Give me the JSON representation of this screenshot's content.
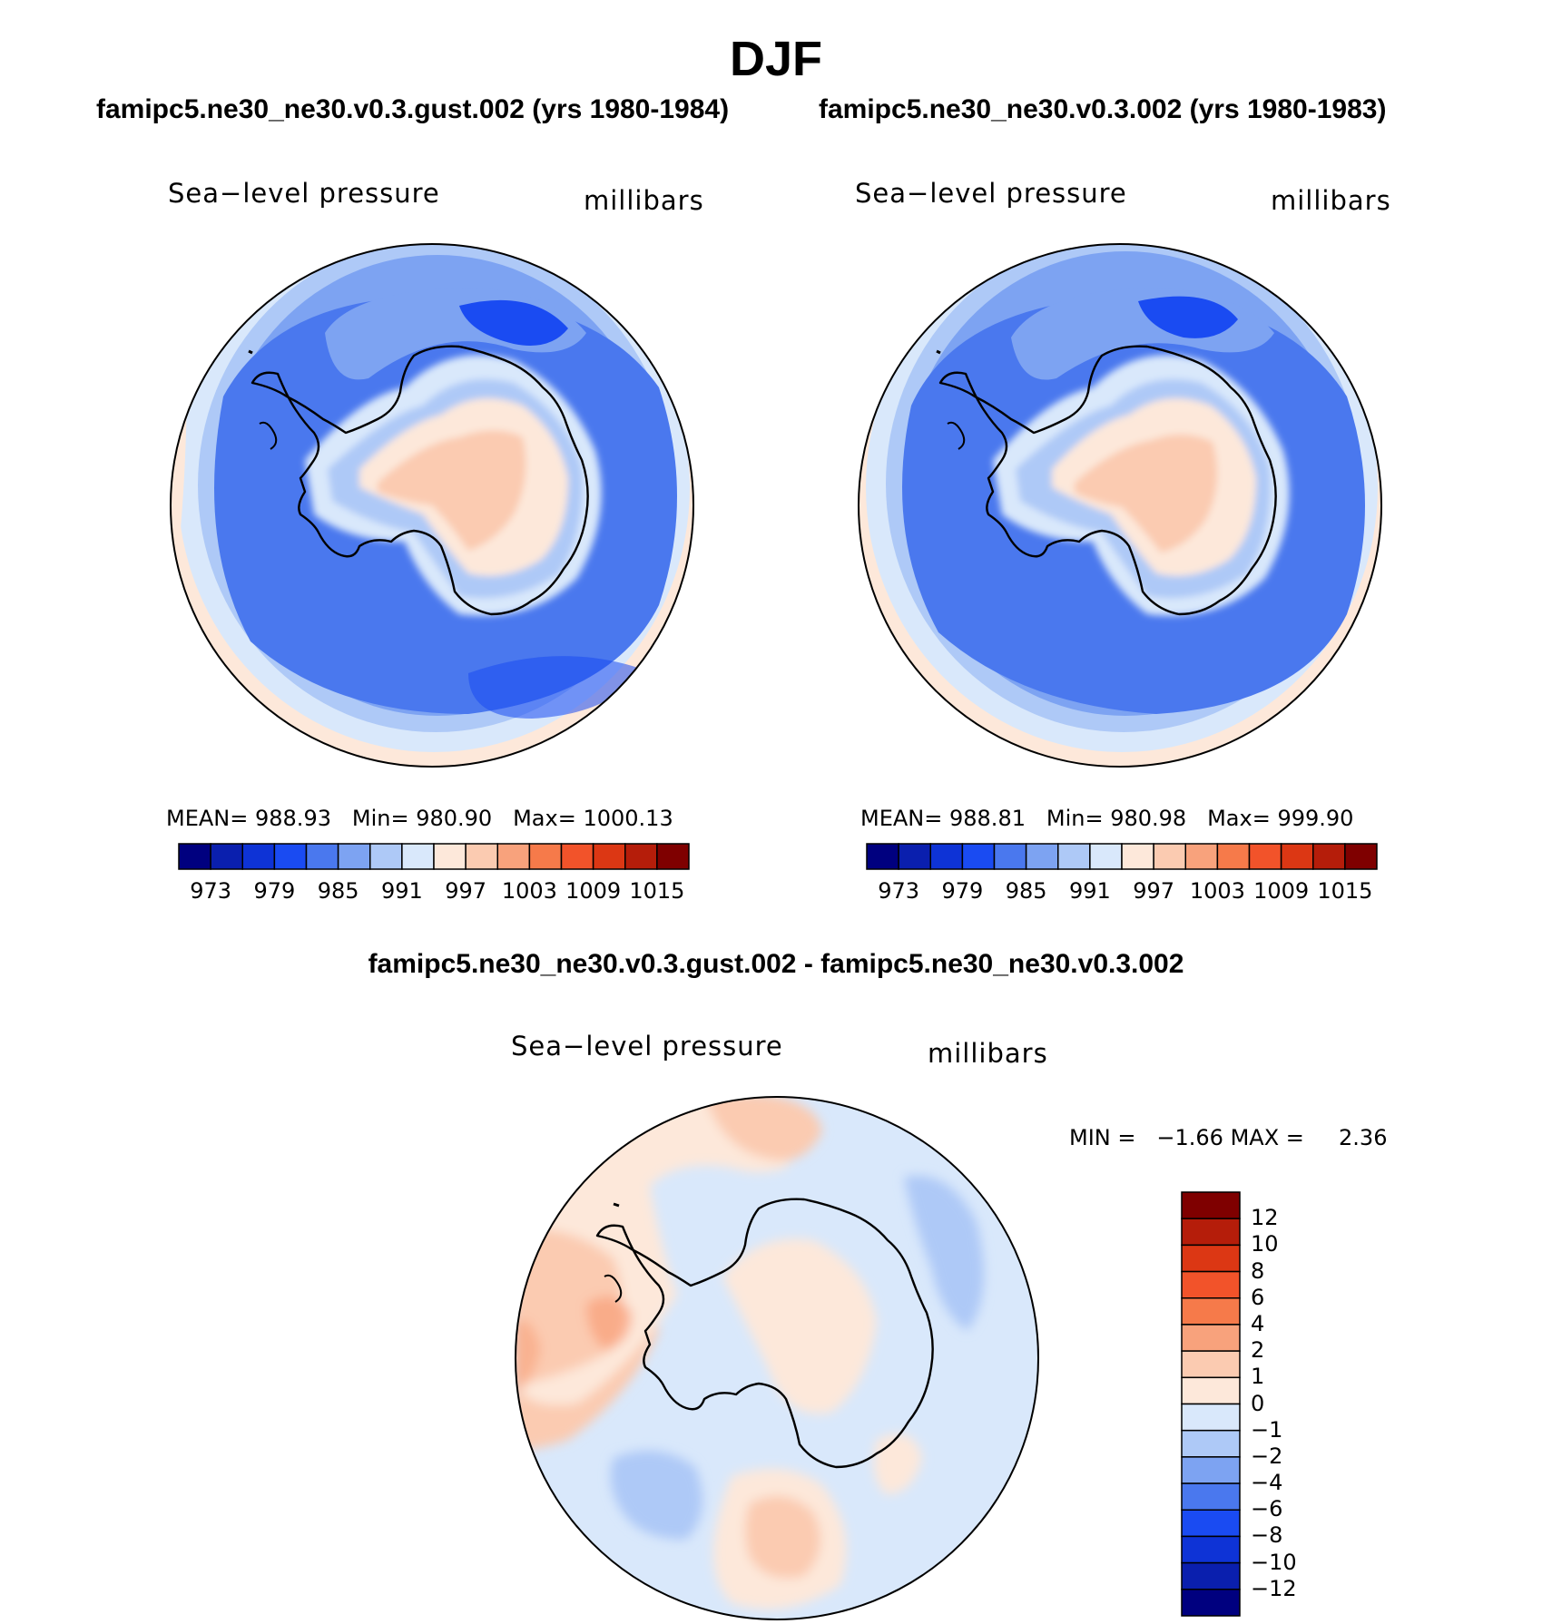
{
  "page_title": "DJF",
  "chart_data": [
    {
      "type": "heatmap",
      "panel": "left",
      "title": "famipc5.ne30_ne30.v0.3.gust.002 (yrs 1980-1984)",
      "left_label": "Sea−level pressure",
      "right_label": "millibars",
      "stats": {
        "mean_label": "MEAN=",
        "mean": "988.93",
        "min_label": "Min=",
        "min": "980.90",
        "max_label": "Max=",
        "max": "1000.13"
      },
      "colorbar": {
        "colors": [
          "#00007f",
          "#0a1fae",
          "#0e33d6",
          "#1a4bf2",
          "#4a78ee",
          "#7da3f2",
          "#aec9f7",
          "#d9e8fb",
          "#fde8da",
          "#fbcbb1",
          "#f8a27c",
          "#f67a4a",
          "#f2532a",
          "#dc3714",
          "#b51d0a",
          "#7f0000"
        ],
        "tick_labels": [
          "973",
          "979",
          "985",
          "991",
          "997",
          "1003",
          "1009",
          "1015"
        ]
      }
    },
    {
      "type": "heatmap",
      "panel": "right",
      "title": "famipc5.ne30_ne30.v0.3.002 (yrs 1980-1983)",
      "left_label": "Sea−level pressure",
      "right_label": "millibars",
      "stats": {
        "mean_label": "MEAN=",
        "mean": "988.81",
        "min_label": "Min=",
        "min": "980.98",
        "max_label": "Max=",
        "max": "999.90"
      },
      "colorbar": {
        "colors": [
          "#00007f",
          "#0a1fae",
          "#0e33d6",
          "#1a4bf2",
          "#4a78ee",
          "#7da3f2",
          "#aec9f7",
          "#d9e8fb",
          "#fde8da",
          "#fbcbb1",
          "#f8a27c",
          "#f67a4a",
          "#f2532a",
          "#dc3714",
          "#b51d0a",
          "#7f0000"
        ],
        "tick_labels": [
          "973",
          "979",
          "985",
          "991",
          "997",
          "1003",
          "1009",
          "1015"
        ]
      }
    },
    {
      "type": "heatmap",
      "panel": "difference",
      "title": "famipc5.ne30_ne30.v0.3.gust.002 - famipc5.ne30_ne30.v0.3.002",
      "left_label": "Sea−level pressure",
      "right_label": "millibars",
      "stats": {
        "min_label": "MIN =",
        "min": "−1.66",
        "max_label": "MAX =",
        "max": "2.36"
      },
      "colorbar": {
        "colors": [
          "#7f0000",
          "#b51d0a",
          "#dc3714",
          "#f2532a",
          "#f67a4a",
          "#f8a27c",
          "#fbcbb1",
          "#fde8da",
          "#d9e8fb",
          "#aec9f7",
          "#7da3f2",
          "#4a78ee",
          "#1a4bf2",
          "#0e33d6",
          "#0a1fae",
          "#00007f"
        ],
        "tick_labels": [
          "12",
          "10",
          "8",
          "6",
          "4",
          "2",
          "1",
          "0",
          "−1",
          "−2",
          "−4",
          "−6",
          "−8",
          "−10",
          "−12"
        ]
      }
    }
  ]
}
